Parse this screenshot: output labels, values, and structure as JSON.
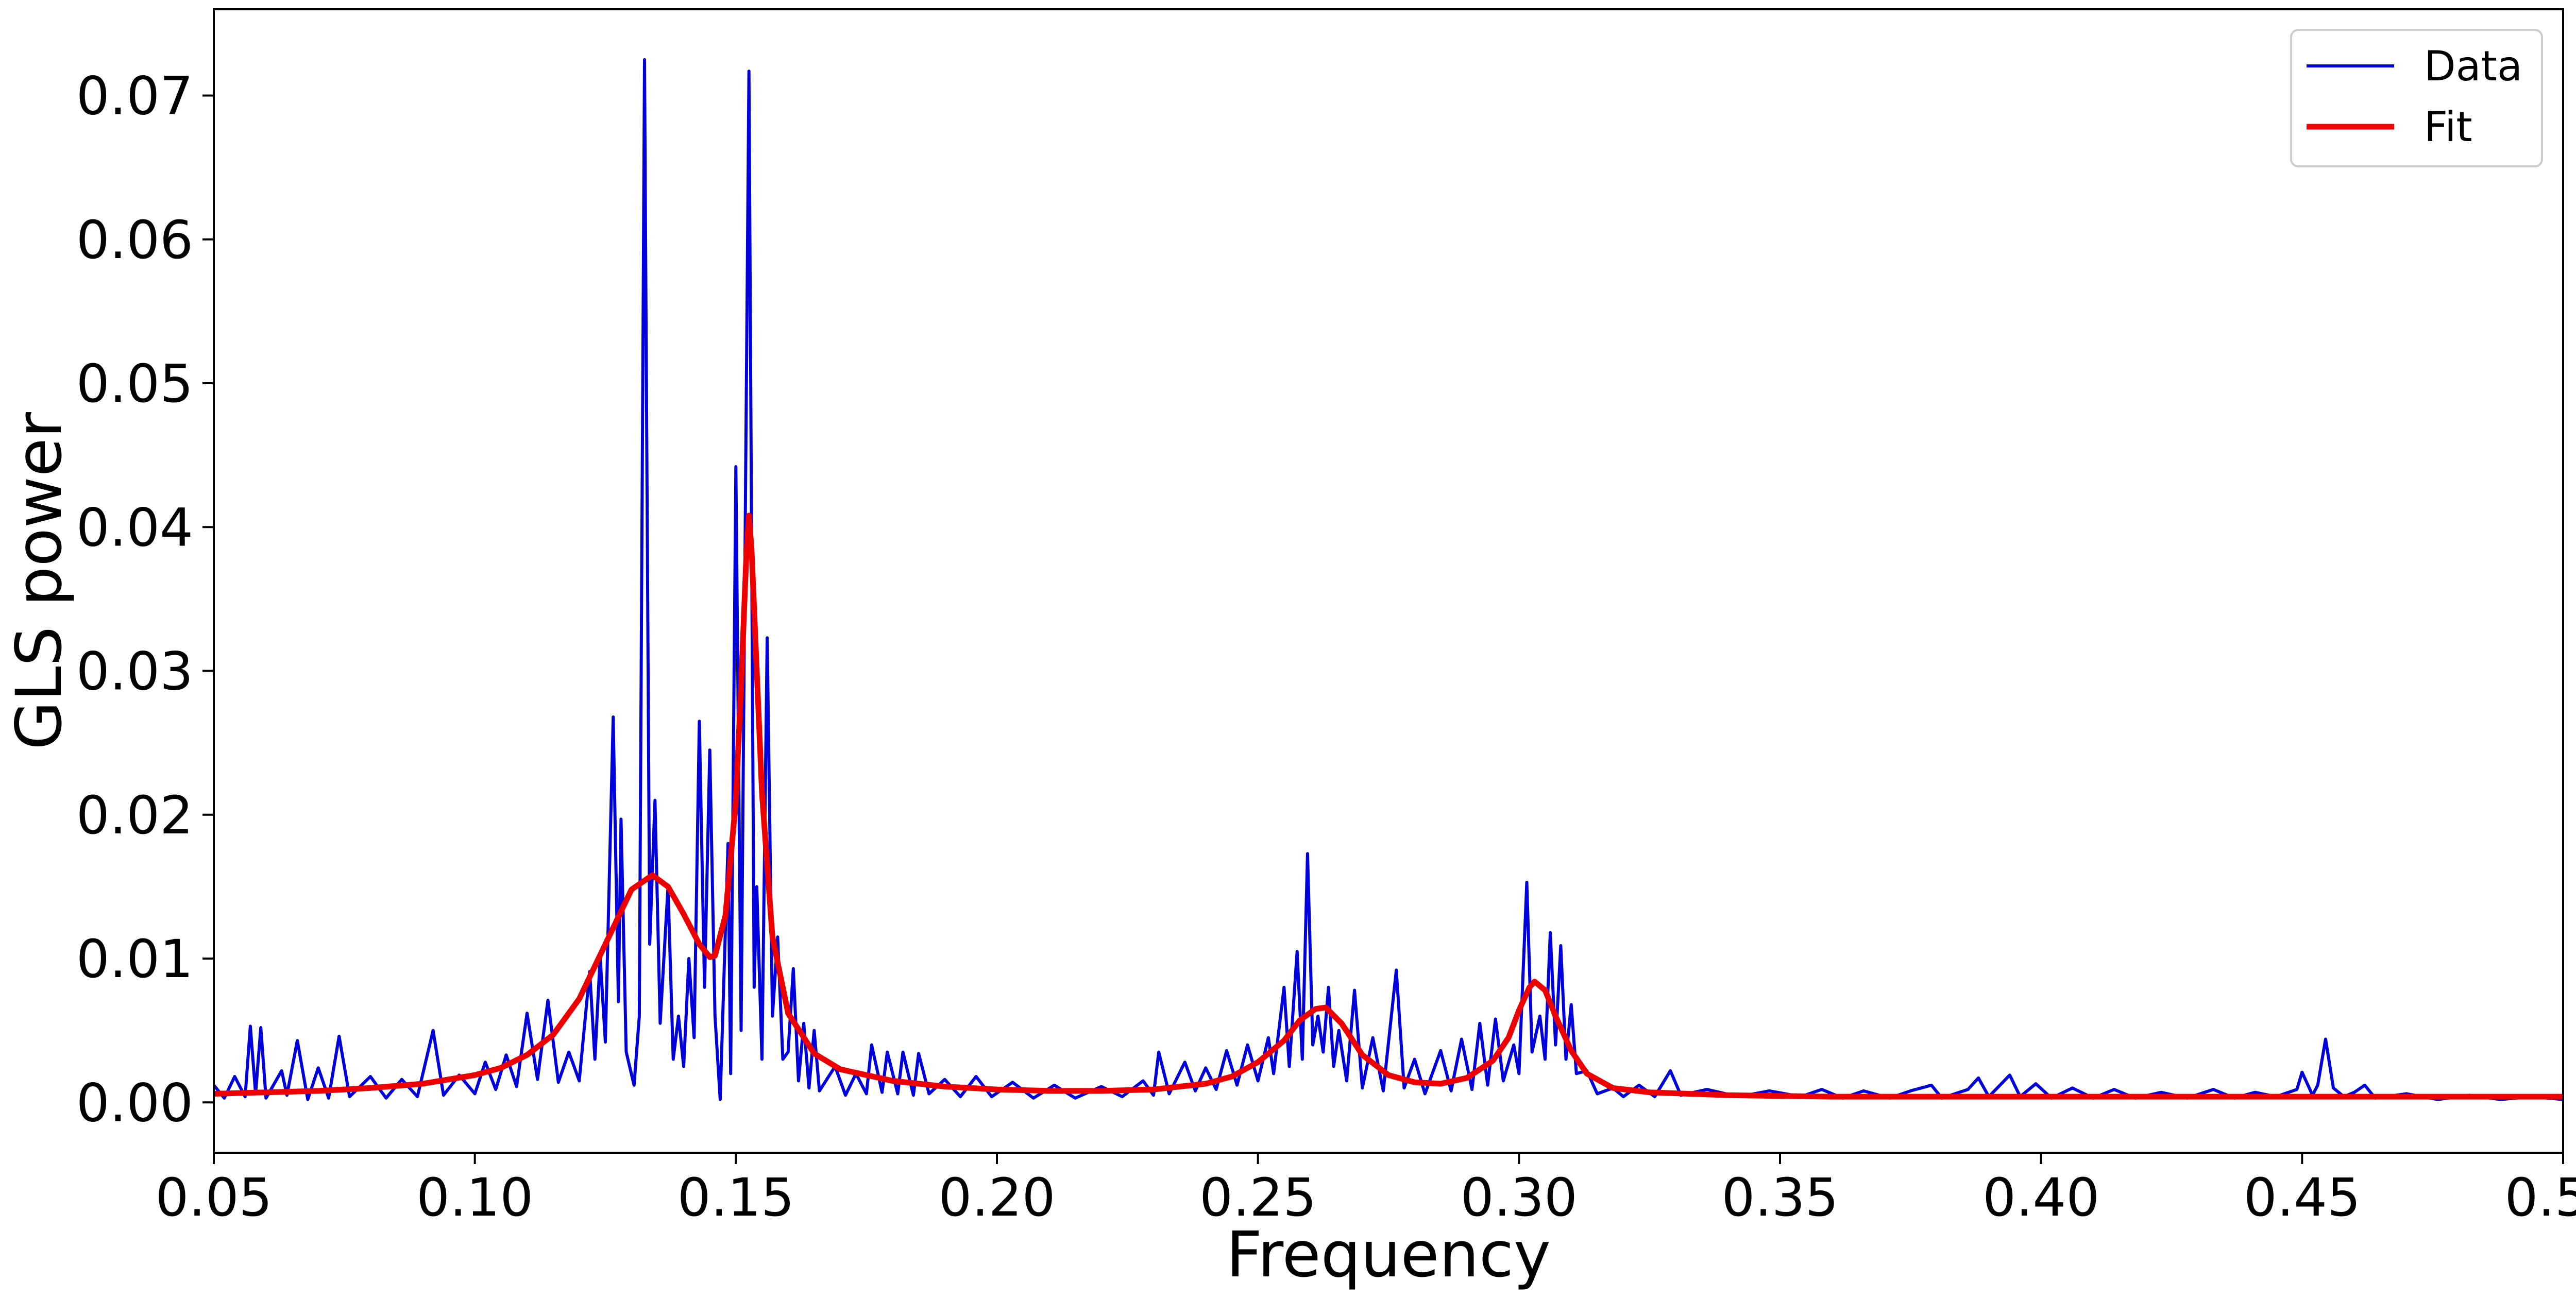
{
  "chart_data": {
    "type": "line",
    "title": "",
    "xlabel": "Frequency",
    "ylabel": "GLS power",
    "xlim": [
      0.05,
      0.5
    ],
    "ylim": [
      -0.0035,
      0.076
    ],
    "xticks": [
      0.05,
      0.1,
      0.15,
      0.2,
      0.25,
      0.3,
      0.35,
      0.4,
      0.45,
      0.5
    ],
    "xtick_labels": [
      "0.05",
      "0.10",
      "0.15",
      "0.20",
      "0.25",
      "0.30",
      "0.35",
      "0.40",
      "0.45",
      "0.50"
    ],
    "yticks": [
      0.0,
      0.01,
      0.02,
      0.03,
      0.04,
      0.05,
      0.06,
      0.07
    ],
    "ytick_labels": [
      "0.00",
      "0.01",
      "0.02",
      "0.03",
      "0.04",
      "0.05",
      "0.06",
      "0.07"
    ],
    "grid": false,
    "legend_position": "top-right",
    "series": [
      {
        "name": "Data",
        "color": "#0000dd",
        "points": [
          [
            0.05,
            0.0012
          ],
          [
            0.052,
            0.0003
          ],
          [
            0.054,
            0.0018
          ],
          [
            0.056,
            0.0004
          ],
          [
            0.057,
            0.0053
          ],
          [
            0.058,
            0.0006
          ],
          [
            0.059,
            0.0052
          ],
          [
            0.06,
            0.0003
          ],
          [
            0.063,
            0.0022
          ],
          [
            0.064,
            0.0005
          ],
          [
            0.066,
            0.0043
          ],
          [
            0.068,
            0.0002
          ],
          [
            0.07,
            0.0024
          ],
          [
            0.072,
            0.0003
          ],
          [
            0.074,
            0.0046
          ],
          [
            0.076,
            0.0004
          ],
          [
            0.08,
            0.0018
          ],
          [
            0.083,
            0.0003
          ],
          [
            0.086,
            0.0016
          ],
          [
            0.089,
            0.0004
          ],
          [
            0.092,
            0.005
          ],
          [
            0.094,
            0.0005
          ],
          [
            0.097,
            0.0019
          ],
          [
            0.1,
            0.0006
          ],
          [
            0.102,
            0.0028
          ],
          [
            0.104,
            0.0009
          ],
          [
            0.106,
            0.0033
          ],
          [
            0.108,
            0.0011
          ],
          [
            0.11,
            0.0062
          ],
          [
            0.112,
            0.0016
          ],
          [
            0.114,
            0.0071
          ],
          [
            0.116,
            0.0014
          ],
          [
            0.118,
            0.0035
          ],
          [
            0.12,
            0.0015
          ],
          [
            0.122,
            0.0091
          ],
          [
            0.123,
            0.003
          ],
          [
            0.124,
            0.0101
          ],
          [
            0.125,
            0.0042
          ],
          [
            0.1265,
            0.0268
          ],
          [
            0.1275,
            0.007
          ],
          [
            0.128,
            0.0197
          ],
          [
            0.129,
            0.0035
          ],
          [
            0.1305,
            0.0012
          ],
          [
            0.1315,
            0.006
          ],
          [
            0.1325,
            0.0725
          ],
          [
            0.1335,
            0.011
          ],
          [
            0.1345,
            0.021
          ],
          [
            0.1355,
            0.0055
          ],
          [
            0.137,
            0.015
          ],
          [
            0.138,
            0.003
          ],
          [
            0.139,
            0.006
          ],
          [
            0.14,
            0.0025
          ],
          [
            0.141,
            0.01
          ],
          [
            0.142,
            0.0045
          ],
          [
            0.143,
            0.0265
          ],
          [
            0.144,
            0.008
          ],
          [
            0.145,
            0.0245
          ],
          [
            0.146,
            0.006
          ],
          [
            0.147,
            0.0002
          ],
          [
            0.1485,
            0.018
          ],
          [
            0.149,
            0.002
          ],
          [
            0.15,
            0.0442
          ],
          [
            0.151,
            0.005
          ],
          [
            0.1525,
            0.0717
          ],
          [
            0.1535,
            0.008
          ],
          [
            0.154,
            0.015
          ],
          [
            0.155,
            0.003
          ],
          [
            0.156,
            0.0323
          ],
          [
            0.157,
            0.006
          ],
          [
            0.158,
            0.0115
          ],
          [
            0.159,
            0.003
          ],
          [
            0.16,
            0.0035
          ],
          [
            0.161,
            0.0093
          ],
          [
            0.162,
            0.0015
          ],
          [
            0.163,
            0.0055
          ],
          [
            0.164,
            0.001
          ],
          [
            0.165,
            0.005
          ],
          [
            0.166,
            0.0008
          ],
          [
            0.169,
            0.0025
          ],
          [
            0.171,
            0.0005
          ],
          [
            0.173,
            0.002
          ],
          [
            0.175,
            0.0006
          ],
          [
            0.176,
            0.004
          ],
          [
            0.178,
            0.0007
          ],
          [
            0.179,
            0.0035
          ],
          [
            0.181,
            0.0006
          ],
          [
            0.182,
            0.0035
          ],
          [
            0.184,
            0.0005
          ],
          [
            0.185,
            0.0034
          ],
          [
            0.187,
            0.0006
          ],
          [
            0.19,
            0.0016
          ],
          [
            0.193,
            0.0004
          ],
          [
            0.196,
            0.0018
          ],
          [
            0.199,
            0.0004
          ],
          [
            0.203,
            0.0014
          ],
          [
            0.207,
            0.0003
          ],
          [
            0.211,
            0.0012
          ],
          [
            0.215,
            0.0003
          ],
          [
            0.22,
            0.0011
          ],
          [
            0.224,
            0.0004
          ],
          [
            0.228,
            0.0015
          ],
          [
            0.23,
            0.0005
          ],
          [
            0.231,
            0.0035
          ],
          [
            0.233,
            0.0006
          ],
          [
            0.236,
            0.0028
          ],
          [
            0.238,
            0.0008
          ],
          [
            0.24,
            0.0024
          ],
          [
            0.242,
            0.0009
          ],
          [
            0.244,
            0.0036
          ],
          [
            0.246,
            0.0012
          ],
          [
            0.248,
            0.004
          ],
          [
            0.25,
            0.0015
          ],
          [
            0.252,
            0.0045
          ],
          [
            0.253,
            0.002
          ],
          [
            0.255,
            0.008
          ],
          [
            0.256,
            0.0025
          ],
          [
            0.2575,
            0.0105
          ],
          [
            0.2585,
            0.003
          ],
          [
            0.2595,
            0.0173
          ],
          [
            0.2605,
            0.004
          ],
          [
            0.2615,
            0.006
          ],
          [
            0.2625,
            0.0035
          ],
          [
            0.2635,
            0.008
          ],
          [
            0.2645,
            0.0025
          ],
          [
            0.2655,
            0.005
          ],
          [
            0.267,
            0.0015
          ],
          [
            0.2685,
            0.0078
          ],
          [
            0.27,
            0.001
          ],
          [
            0.272,
            0.0045
          ],
          [
            0.274,
            0.0008
          ],
          [
            0.2765,
            0.0092
          ],
          [
            0.278,
            0.001
          ],
          [
            0.28,
            0.003
          ],
          [
            0.282,
            0.0006
          ],
          [
            0.285,
            0.0036
          ],
          [
            0.287,
            0.0008
          ],
          [
            0.289,
            0.0044
          ],
          [
            0.291,
            0.0009
          ],
          [
            0.2925,
            0.0055
          ],
          [
            0.294,
            0.0012
          ],
          [
            0.2955,
            0.0058
          ],
          [
            0.297,
            0.0015
          ],
          [
            0.299,
            0.004
          ],
          [
            0.3,
            0.002
          ],
          [
            0.3015,
            0.0153
          ],
          [
            0.3025,
            0.0035
          ],
          [
            0.304,
            0.006
          ],
          [
            0.305,
            0.003
          ],
          [
            0.306,
            0.0118
          ],
          [
            0.307,
            0.004
          ],
          [
            0.308,
            0.0109
          ],
          [
            0.309,
            0.003
          ],
          [
            0.31,
            0.0068
          ],
          [
            0.311,
            0.002
          ],
          [
            0.313,
            0.0022
          ],
          [
            0.315,
            0.0006
          ],
          [
            0.318,
            0.001
          ],
          [
            0.32,
            0.0004
          ],
          [
            0.323,
            0.0012
          ],
          [
            0.326,
            0.0004
          ],
          [
            0.329,
            0.0022
          ],
          [
            0.331,
            0.0005
          ],
          [
            0.336,
            0.0009
          ],
          [
            0.342,
            0.0004
          ],
          [
            0.348,
            0.0008
          ],
          [
            0.354,
            0.0004
          ],
          [
            0.358,
            0.0009
          ],
          [
            0.362,
            0.0003
          ],
          [
            0.366,
            0.0008
          ],
          [
            0.371,
            0.0003
          ],
          [
            0.375,
            0.0008
          ],
          [
            0.379,
            0.0012
          ],
          [
            0.381,
            0.0003
          ],
          [
            0.386,
            0.0009
          ],
          [
            0.388,
            0.0017
          ],
          [
            0.39,
            0.0004
          ],
          [
            0.394,
            0.0019
          ],
          [
            0.396,
            0.0004
          ],
          [
            0.399,
            0.0013
          ],
          [
            0.402,
            0.0003
          ],
          [
            0.406,
            0.001
          ],
          [
            0.41,
            0.0003
          ],
          [
            0.414,
            0.0009
          ],
          [
            0.418,
            0.0003
          ],
          [
            0.423,
            0.0007
          ],
          [
            0.428,
            0.0003
          ],
          [
            0.433,
            0.0009
          ],
          [
            0.437,
            0.0003
          ],
          [
            0.441,
            0.0007
          ],
          [
            0.445,
            0.0004
          ],
          [
            0.449,
            0.0009
          ],
          [
            0.45,
            0.0021
          ],
          [
            0.452,
            0.0005
          ],
          [
            0.453,
            0.0012
          ],
          [
            0.4545,
            0.0044
          ],
          [
            0.456,
            0.001
          ],
          [
            0.458,
            0.0004
          ],
          [
            0.46,
            0.0007
          ],
          [
            0.462,
            0.0012
          ],
          [
            0.464,
            0.0003
          ],
          [
            0.47,
            0.0006
          ],
          [
            0.476,
            0.0002
          ],
          [
            0.482,
            0.0005
          ],
          [
            0.488,
            0.0002
          ],
          [
            0.494,
            0.0004
          ],
          [
            0.5,
            0.0002
          ]
        ]
      },
      {
        "name": "Fit",
        "color": "#ee0000",
        "points": [
          [
            0.05,
            0.0006
          ],
          [
            0.06,
            0.0007
          ],
          [
            0.07,
            0.0008
          ],
          [
            0.08,
            0.001
          ],
          [
            0.09,
            0.0013
          ],
          [
            0.1,
            0.0019
          ],
          [
            0.105,
            0.0024
          ],
          [
            0.11,
            0.0033
          ],
          [
            0.115,
            0.0047
          ],
          [
            0.12,
            0.0072
          ],
          [
            0.125,
            0.011
          ],
          [
            0.13,
            0.0148
          ],
          [
            0.134,
            0.0158
          ],
          [
            0.137,
            0.015
          ],
          [
            0.14,
            0.0131
          ],
          [
            0.143,
            0.011
          ],
          [
            0.145,
            0.0101
          ],
          [
            0.146,
            0.0102
          ],
          [
            0.148,
            0.013
          ],
          [
            0.15,
            0.021
          ],
          [
            0.151,
            0.029
          ],
          [
            0.152,
            0.038
          ],
          [
            0.1525,
            0.0408
          ],
          [
            0.153,
            0.0385
          ],
          [
            0.154,
            0.03
          ],
          [
            0.155,
            0.0215
          ],
          [
            0.157,
            0.0115
          ],
          [
            0.16,
            0.0062
          ],
          [
            0.165,
            0.0034
          ],
          [
            0.17,
            0.0023
          ],
          [
            0.18,
            0.0015
          ],
          [
            0.19,
            0.0011
          ],
          [
            0.2,
            0.0009
          ],
          [
            0.21,
            0.0008
          ],
          [
            0.22,
            0.0008
          ],
          [
            0.23,
            0.0009
          ],
          [
            0.24,
            0.0013
          ],
          [
            0.245,
            0.0018
          ],
          [
            0.25,
            0.0028
          ],
          [
            0.255,
            0.0043
          ],
          [
            0.258,
            0.0057
          ],
          [
            0.261,
            0.0065
          ],
          [
            0.263,
            0.0066
          ],
          [
            0.266,
            0.0055
          ],
          [
            0.27,
            0.0033
          ],
          [
            0.275,
            0.0019
          ],
          [
            0.28,
            0.0014
          ],
          [
            0.285,
            0.0013
          ],
          [
            0.29,
            0.0017
          ],
          [
            0.295,
            0.0029
          ],
          [
            0.298,
            0.0045
          ],
          [
            0.3,
            0.0064
          ],
          [
            0.302,
            0.008
          ],
          [
            0.303,
            0.0084
          ],
          [
            0.305,
            0.0078
          ],
          [
            0.307,
            0.006
          ],
          [
            0.31,
            0.0036
          ],
          [
            0.313,
            0.002
          ],
          [
            0.318,
            0.001
          ],
          [
            0.325,
            0.0007
          ],
          [
            0.34,
            0.0005
          ],
          [
            0.36,
            0.0004
          ],
          [
            0.4,
            0.0004
          ],
          [
            0.45,
            0.0004
          ],
          [
            0.5,
            0.0004
          ]
        ]
      }
    ]
  }
}
